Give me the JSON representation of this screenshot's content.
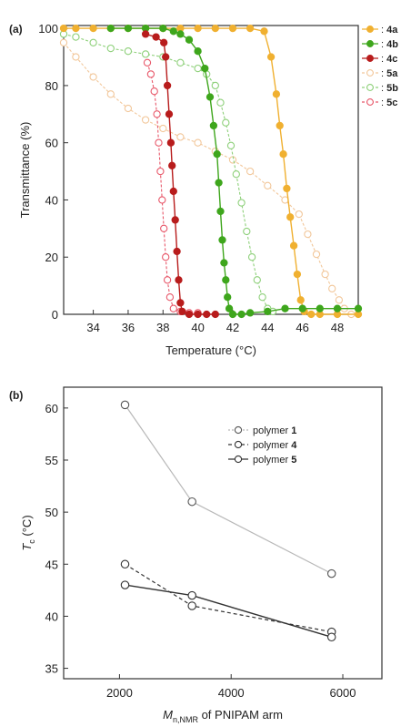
{
  "panels": {
    "a": {
      "panel_label": "(a)",
      "legend_prefix": ": "
    },
    "b": {
      "panel_label": "(b)",
      "legend_prefix": "polymer "
    }
  },
  "colors": {
    "orange": "#f0b030",
    "green": "#3ea61c",
    "red": "#b81c1c",
    "orange_light": "#f2c79a",
    "green_light": "#8ed07a",
    "red_light": "#e8586a",
    "axis": "#333333",
    "gray_line": "#b8b8b8",
    "dark_line": "#333333"
  },
  "chart_data": [
    {
      "panel": "a",
      "type": "line",
      "title": "",
      "xlabel": "Temperature (°C)",
      "ylabel": "Transmittance (%)",
      "xlim": [
        32.3,
        49.2
      ],
      "ylim": [
        0,
        101
      ],
      "xticks": [
        34,
        36,
        38,
        40,
        42,
        44,
        46,
        48
      ],
      "yticks": [
        0,
        20,
        40,
        60,
        80,
        100
      ],
      "grid": false,
      "legend_position": "right",
      "series": [
        {
          "name": "4a",
          "style": "filled-solid",
          "color": "orange",
          "points": [
            [
              32.3,
              100
            ],
            [
              33,
              100
            ],
            [
              34,
              100
            ],
            [
              35,
              100
            ],
            [
              36,
              100
            ],
            [
              37,
              100
            ],
            [
              38,
              100
            ],
            [
              39,
              100
            ],
            [
              40,
              100
            ],
            [
              41,
              100
            ],
            [
              42,
              100
            ],
            [
              43,
              100
            ],
            [
              43.8,
              99
            ],
            [
              44.2,
              90
            ],
            [
              44.5,
              77
            ],
            [
              44.7,
              66
            ],
            [
              44.9,
              56
            ],
            [
              45.1,
              44
            ],
            [
              45.3,
              34
            ],
            [
              45.5,
              24
            ],
            [
              45.7,
              14
            ],
            [
              45.9,
              5
            ],
            [
              46.1,
              1
            ],
            [
              46.5,
              0
            ],
            [
              47,
              0
            ],
            [
              48,
              0
            ],
            [
              49.2,
              0
            ]
          ]
        },
        {
          "name": "4b",
          "style": "filled-solid",
          "color": "green",
          "points": [
            [
              35,
              100
            ],
            [
              36,
              100
            ],
            [
              37,
              100
            ],
            [
              38,
              100
            ],
            [
              38.6,
              99
            ],
            [
              39,
              98
            ],
            [
              39.5,
              96
            ],
            [
              40,
              92
            ],
            [
              40.4,
              86
            ],
            [
              40.7,
              76
            ],
            [
              40.9,
              66
            ],
            [
              41.1,
              56
            ],
            [
              41.2,
              46
            ],
            [
              41.3,
              36
            ],
            [
              41.4,
              26
            ],
            [
              41.5,
              18
            ],
            [
              41.6,
              12
            ],
            [
              41.7,
              6
            ],
            [
              41.8,
              2
            ],
            [
              42,
              0
            ],
            [
              42.5,
              0
            ],
            [
              43,
              0.5
            ],
            [
              44,
              1
            ],
            [
              45,
              2
            ],
            [
              46,
              2
            ],
            [
              47,
              2
            ],
            [
              48,
              2
            ],
            [
              49.2,
              2
            ]
          ]
        },
        {
          "name": "4c",
          "style": "filled-solid",
          "color": "red",
          "points": [
            [
              37,
              98
            ],
            [
              37.6,
              97
            ],
            [
              38.05,
              95
            ],
            [
              38.15,
              90
            ],
            [
              38.25,
              80
            ],
            [
              38.35,
              70
            ],
            [
              38.45,
              60
            ],
            [
              38.52,
              52
            ],
            [
              38.6,
              43
            ],
            [
              38.7,
              33
            ],
            [
              38.8,
              22
            ],
            [
              38.9,
              12
            ],
            [
              39,
              4
            ],
            [
              39.1,
              1
            ],
            [
              39.5,
              0
            ],
            [
              40,
              0
            ],
            [
              40.5,
              0
            ],
            [
              41,
              0
            ]
          ]
        },
        {
          "name": "5a",
          "style": "open-dashed",
          "color": "orange_light",
          "points": [
            [
              32.3,
              95
            ],
            [
              33,
              90
            ],
            [
              34,
              83
            ],
            [
              35,
              77
            ],
            [
              36,
              72
            ],
            [
              37,
              68
            ],
            [
              38,
              65
            ],
            [
              39,
              62
            ],
            [
              40,
              60
            ],
            [
              41,
              57
            ],
            [
              42,
              54
            ],
            [
              43,
              50
            ],
            [
              44,
              45
            ],
            [
              45,
              40
            ],
            [
              45.8,
              35
            ],
            [
              46.3,
              28
            ],
            [
              46.8,
              21
            ],
            [
              47.3,
              14
            ],
            [
              47.7,
              9
            ],
            [
              48.1,
              5
            ],
            [
              48.4,
              2
            ],
            [
              48.8,
              0
            ]
          ]
        },
        {
          "name": "5b",
          "style": "open-dashed",
          "color": "green_light",
          "points": [
            [
              32.3,
              98
            ],
            [
              33,
              97
            ],
            [
              34,
              95
            ],
            [
              35,
              93
            ],
            [
              36,
              92
            ],
            [
              37,
              91
            ],
            [
              38,
              90
            ],
            [
              39,
              88
            ],
            [
              40,
              86
            ],
            [
              40.5,
              84
            ],
            [
              41,
              80
            ],
            [
              41.3,
              74
            ],
            [
              41.6,
              67
            ],
            [
              41.9,
              59
            ],
            [
              42.2,
              49
            ],
            [
              42.5,
              39
            ],
            [
              42.8,
              29
            ],
            [
              43.1,
              20
            ],
            [
              43.4,
              12
            ],
            [
              43.7,
              6
            ],
            [
              44,
              2
            ],
            [
              44.3,
              1
            ]
          ]
        },
        {
          "name": "5c",
          "style": "open-dashed",
          "color": "red_light",
          "points": [
            [
              37.1,
              88
            ],
            [
              37.3,
              84
            ],
            [
              37.5,
              78
            ],
            [
              37.65,
              70
            ],
            [
              37.75,
              60
            ],
            [
              37.85,
              50
            ],
            [
              37.95,
              40
            ],
            [
              38.05,
              30
            ],
            [
              38.15,
              20
            ],
            [
              38.25,
              12
            ],
            [
              38.4,
              6
            ],
            [
              38.6,
              2
            ],
            [
              39,
              1
            ],
            [
              39.5,
              0.5
            ],
            [
              40,
              0.5
            ]
          ]
        }
      ]
    },
    {
      "panel": "b",
      "type": "line",
      "title": "",
      "xlabel": "Mn,NMR of PNIPAM arm",
      "ylabel": "Tc (°C)",
      "xlim": [
        1000,
        6700
      ],
      "ylim": [
        34,
        62
      ],
      "xticks": [
        2000,
        4000,
        6000
      ],
      "yticks": [
        35,
        40,
        45,
        50,
        55,
        60
      ],
      "grid": false,
      "legend_position": "top-right",
      "series": [
        {
          "name": "1",
          "style": "open-dashgap",
          "color": "gray_line",
          "x": [
            2100,
            3300,
            5800
          ],
          "y": [
            60.3,
            51.0,
            44.1
          ]
        },
        {
          "name": "4",
          "style": "open-dashed",
          "color": "dark_line",
          "x": [
            2100,
            3300,
            5800
          ],
          "y": [
            45.0,
            41.0,
            38.5
          ]
        },
        {
          "name": "5",
          "style": "open-solid",
          "color": "dark_line",
          "x": [
            2100,
            3300,
            5800
          ],
          "y": [
            43.0,
            42.0,
            38.0
          ]
        }
      ]
    }
  ]
}
